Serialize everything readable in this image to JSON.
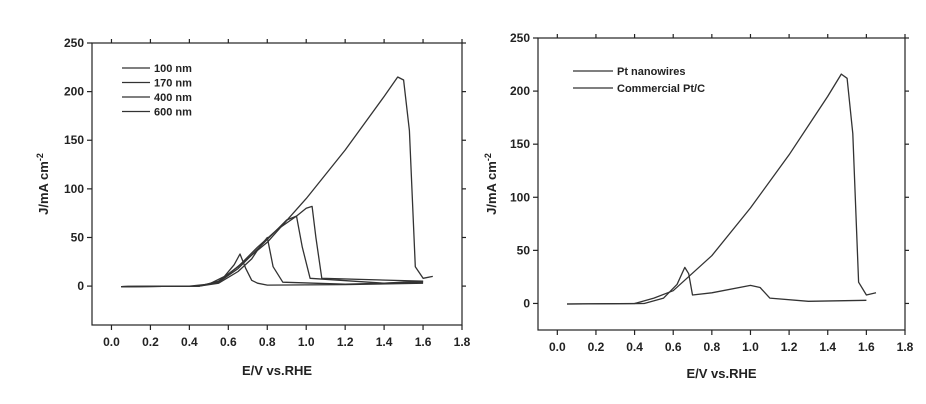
{
  "chart_data": [
    {
      "type": "line",
      "title": "",
      "xlabel": "E/V vs.RHE",
      "ylabel": "J/mA cm",
      "ylabel_superscript": "-2",
      "xlim": [
        -0.1,
        1.8
      ],
      "ylim": [
        -40,
        250
      ],
      "xticks": [
        "0.0",
        "0.2",
        "0.4",
        "0.6",
        "0.8",
        "1.0",
        "1.2",
        "1.4",
        "1.6",
        "1.8"
      ],
      "yticks": [
        "0",
        "50",
        "100",
        "150",
        "200",
        "250"
      ],
      "legend_position": "top-left",
      "series": [
        {
          "name": "100 nm",
          "x": [
            0.05,
            0.4,
            0.5,
            0.58,
            0.63,
            0.66,
            0.69,
            0.72,
            0.75,
            0.8,
            1.2,
            1.6
          ],
          "y": [
            -0.5,
            0,
            2,
            10,
            22,
            33,
            18,
            6,
            3,
            1,
            1.5,
            3
          ]
        },
        {
          "name": "170 nm",
          "x": [
            0.05,
            0.45,
            0.55,
            0.65,
            0.72,
            0.76,
            0.8,
            0.83,
            0.88,
            1.2,
            1.6
          ],
          "y": [
            -0.5,
            0,
            3,
            15,
            28,
            40,
            50,
            20,
            4,
            2,
            4
          ]
        },
        {
          "name": "400 nm",
          "x": [
            0.05,
            0.45,
            0.55,
            0.65,
            0.75,
            0.85,
            0.9,
            0.95,
            0.98,
            1.02,
            1.4,
            1.6
          ],
          "y": [
            -0.5,
            0,
            4,
            18,
            38,
            58,
            68,
            72,
            40,
            8,
            3,
            5
          ]
        },
        {
          "name": "600 nm",
          "x": [
            0.05,
            0.45,
            0.55,
            0.65,
            0.75,
            0.85,
            0.95,
            1.0,
            1.03,
            1.05,
            1.08,
            1.6
          ],
          "y": [
            -0.5,
            0,
            5,
            20,
            40,
            58,
            72,
            80,
            82,
            50,
            8,
            5
          ]
        },
        {
          "name": "",
          "x": [
            0.05,
            0.45,
            0.55,
            0.6,
            0.8,
            1.0,
            1.2,
            1.4,
            1.47,
            1.5,
            1.53,
            1.56,
            1.6,
            1.65
          ],
          "y": [
            -0.5,
            0,
            5,
            12,
            45,
            90,
            140,
            195,
            215,
            212,
            160,
            20,
            8,
            10
          ]
        }
      ]
    },
    {
      "type": "line",
      "title": "",
      "xlabel": "E/V vs.RHE",
      "ylabel": "J/mA cm",
      "ylabel_superscript": "-2",
      "xlim": [
        -0.1,
        1.8
      ],
      "ylim": [
        -25,
        250
      ],
      "xticks": [
        "0.0",
        "0.2",
        "0.4",
        "0.6",
        "0.8",
        "1.0",
        "1.2",
        "1.4",
        "1.6",
        "1.8"
      ],
      "yticks": [
        "0",
        "50",
        "100",
        "150",
        "200",
        "250"
      ],
      "legend_position": "top-left",
      "series": [
        {
          "name": "Pt nanowires",
          "x": [
            0.05,
            0.4,
            0.5,
            0.6,
            0.8,
            1.0,
            1.2,
            1.4,
            1.47,
            1.5,
            1.53,
            1.56,
            1.6,
            1.65
          ],
          "y": [
            -0.5,
            0,
            5,
            12,
            45,
            90,
            140,
            195,
            216,
            212,
            160,
            20,
            8,
            10
          ]
        },
        {
          "name": "Commercial Pt/C",
          "x": [
            0.05,
            0.45,
            0.55,
            0.62,
            0.66,
            0.68,
            0.7,
            0.8,
            1.0,
            1.05,
            1.1,
            1.3,
            1.6
          ],
          "y": [
            -0.5,
            0,
            5,
            18,
            34,
            28,
            8,
            10,
            17,
            15,
            5,
            2,
            3
          ]
        }
      ]
    }
  ]
}
